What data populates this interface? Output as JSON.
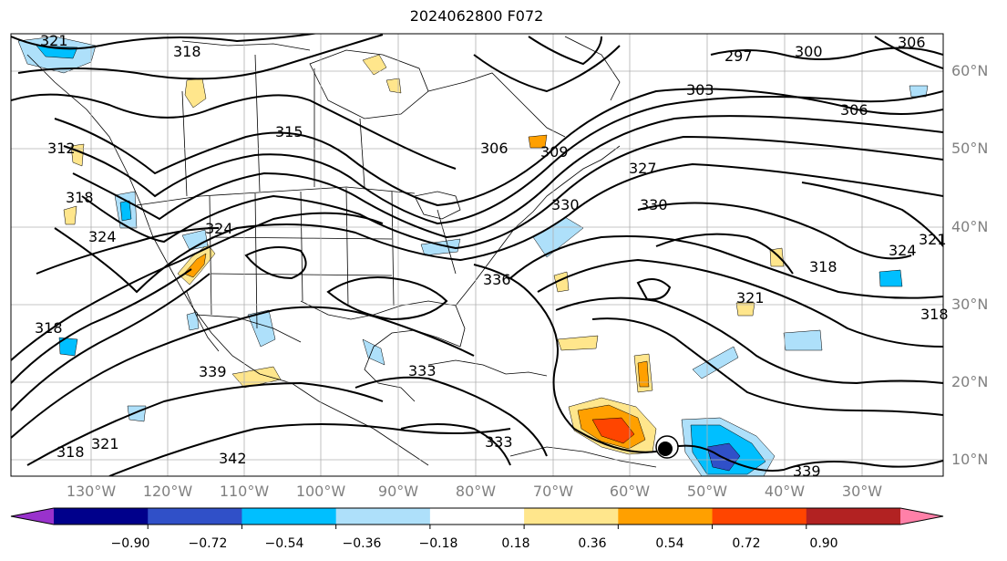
{
  "title": "2024062800 F072",
  "lat_labels": [
    "60°N",
    "50°N",
    "40°N",
    "30°N",
    "20°N",
    "10°N"
  ],
  "lon_labels": [
    "130°W",
    "120°W",
    "110°W",
    "100°W",
    "90°W",
    "80°W",
    "70°W",
    "60°W",
    "50°W",
    "40°W",
    "30°W"
  ],
  "contour_labels": [
    "321",
    "318",
    "297",
    "300",
    "306",
    "303",
    "306",
    "312",
    "315",
    "318",
    "309",
    "306",
    "327",
    "330",
    "324",
    "324",
    "330",
    "336",
    "318",
    "321",
    "324",
    "318",
    "339",
    "333",
    "333",
    "318",
    "321",
    "342",
    "339",
    "321",
    "318"
  ],
  "colorbar": {
    "ticks": [
      "−0.90",
      "−0.72",
      "−0.54",
      "−0.36",
      "−0.18",
      "0.18",
      "0.36",
      "0.54",
      "0.72",
      "0.90"
    ],
    "colors": [
      "#9932cc",
      "#00008b",
      "#3050c8",
      "#00bfff",
      "#aee0fa",
      "#ffffff",
      "#ffe68c",
      "#ffa000",
      "#ff4500",
      "#b22222",
      "#ff80a8"
    ]
  },
  "colors": {
    "contour": "#000000",
    "border": "#000000",
    "grid": "#b0b0b0",
    "axis_label": "#808080"
  }
}
